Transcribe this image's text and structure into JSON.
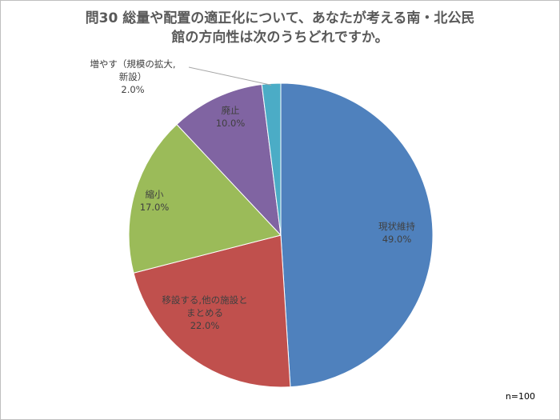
{
  "chart_data": {
    "type": "pie",
    "title": "問30 総量や配置の適正化について、あなたが考える南・北公民\n館の方向性は次のうちどれですか。",
    "categories": [
      "現状維持",
      "移設する,他の施設と\nまとめる",
      "縮小",
      "廃止",
      "増やす（規模の拡大,\n新設）"
    ],
    "values": [
      49,
      22,
      17,
      10,
      2
    ],
    "value_labels": [
      "49.0%",
      "22.0%",
      "17.0%",
      "10.0%",
      "2.0%"
    ],
    "colors": [
      "#4f81bd",
      "#c0504d",
      "#9bbb59",
      "#8064a2",
      "#4bacc6"
    ],
    "annotation": "n=100"
  }
}
